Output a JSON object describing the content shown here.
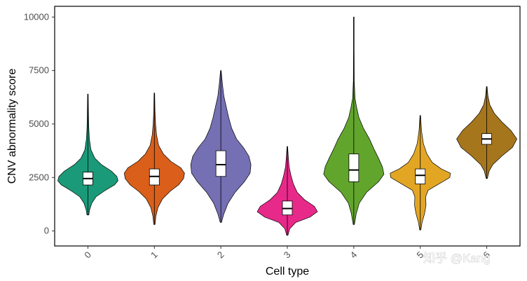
{
  "chart_data": {
    "type": "violin",
    "title": "",
    "xlabel": "Cell type",
    "ylabel": "CNV abnormality score",
    "ylim": [
      -700,
      10500
    ],
    "yticks": [
      0,
      2500,
      5000,
      7500,
      10000
    ],
    "categories": [
      "0",
      "1",
      "2",
      "3",
      "4",
      "5",
      "6"
    ],
    "colors": [
      "#1a9a78",
      "#d95f1a",
      "#7570b3",
      "#e7298a",
      "#62a52d",
      "#e3a624",
      "#a6761d"
    ],
    "series": [
      {
        "name": "0",
        "min": 750,
        "q1": 2150,
        "median": 2450,
        "q3": 2750,
        "max": 6400,
        "density": [
          [
            750,
            0.03
          ],
          [
            1000,
            0.06
          ],
          [
            1300,
            0.13
          ],
          [
            1600,
            0.27
          ],
          [
            1900,
            0.58
          ],
          [
            2150,
            0.88
          ],
          [
            2350,
            1.0
          ],
          [
            2550,
            0.96
          ],
          [
            2800,
            0.78
          ],
          [
            3100,
            0.45
          ],
          [
            3400,
            0.23
          ],
          [
            3800,
            0.1
          ],
          [
            4300,
            0.05
          ],
          [
            4800,
            0.03
          ],
          [
            5400,
            0.02
          ],
          [
            6400,
            0.01
          ]
        ]
      },
      {
        "name": "1",
        "min": 300,
        "q1": 2150,
        "median": 2550,
        "q3": 2900,
        "max": 6450,
        "density": [
          [
            300,
            0.02
          ],
          [
            700,
            0.05
          ],
          [
            1100,
            0.12
          ],
          [
            1500,
            0.27
          ],
          [
            1850,
            0.52
          ],
          [
            2150,
            0.8
          ],
          [
            2450,
            0.97
          ],
          [
            2700,
            1.0
          ],
          [
            2950,
            0.88
          ],
          [
            3250,
            0.55
          ],
          [
            3600,
            0.3
          ],
          [
            4000,
            0.14
          ],
          [
            4500,
            0.07
          ],
          [
            5000,
            0.04
          ],
          [
            5600,
            0.02
          ],
          [
            6450,
            0.01
          ]
        ]
      },
      {
        "name": "2",
        "min": 400,
        "q1": 2550,
        "median": 3100,
        "q3": 3750,
        "max": 7500,
        "density": [
          [
            400,
            0.02
          ],
          [
            800,
            0.1
          ],
          [
            1300,
            0.24
          ],
          [
            1800,
            0.47
          ],
          [
            2300,
            0.78
          ],
          [
            2700,
            0.97
          ],
          [
            3100,
            1.0
          ],
          [
            3500,
            0.93
          ],
          [
            3900,
            0.75
          ],
          [
            4300,
            0.52
          ],
          [
            4800,
            0.36
          ],
          [
            5300,
            0.26
          ],
          [
            5800,
            0.18
          ],
          [
            6300,
            0.1
          ],
          [
            6900,
            0.05
          ],
          [
            7500,
            0.01
          ]
        ]
      },
      {
        "name": "3",
        "min": -200,
        "q1": 750,
        "median": 1050,
        "q3": 1400,
        "max": 3950,
        "density": [
          [
            -200,
            0.02
          ],
          [
            100,
            0.08
          ],
          [
            400,
            0.28
          ],
          [
            650,
            0.75
          ],
          [
            900,
            1.0
          ],
          [
            1150,
            0.9
          ],
          [
            1450,
            0.58
          ],
          [
            1800,
            0.33
          ],
          [
            2200,
            0.2
          ],
          [
            2600,
            0.12
          ],
          [
            3000,
            0.06
          ],
          [
            3500,
            0.03
          ],
          [
            3950,
            0.01
          ]
        ]
      },
      {
        "name": "4",
        "min": 300,
        "q1": 2300,
        "median": 2850,
        "q3": 3600,
        "max": 10000,
        "density": [
          [
            300,
            0.02
          ],
          [
            800,
            0.08
          ],
          [
            1300,
            0.18
          ],
          [
            1800,
            0.42
          ],
          [
            2300,
            0.82
          ],
          [
            2650,
            1.0
          ],
          [
            3000,
            0.95
          ],
          [
            3400,
            0.82
          ],
          [
            3800,
            0.68
          ],
          [
            4300,
            0.52
          ],
          [
            4800,
            0.32
          ],
          [
            5300,
            0.17
          ],
          [
            5800,
            0.09
          ],
          [
            6200,
            0.04
          ],
          [
            7000,
            0.015
          ],
          [
            8500,
            0.01
          ],
          [
            10000,
            0.01
          ]
        ]
      },
      {
        "name": "5",
        "min": 50,
        "q1": 2200,
        "median": 2600,
        "q3": 2900,
        "max": 5400,
        "density": [
          [
            50,
            0.02
          ],
          [
            400,
            0.06
          ],
          [
            800,
            0.14
          ],
          [
            1200,
            0.19
          ],
          [
            1600,
            0.18
          ],
          [
            1900,
            0.26
          ],
          [
            2200,
            0.62
          ],
          [
            2500,
            0.98
          ],
          [
            2700,
            1.0
          ],
          [
            2900,
            0.7
          ],
          [
            3200,
            0.4
          ],
          [
            3600,
            0.22
          ],
          [
            4100,
            0.1
          ],
          [
            4700,
            0.04
          ],
          [
            5400,
            0.01
          ]
        ]
      },
      {
        "name": "6",
        "min": 2450,
        "q1": 4050,
        "median": 4300,
        "q3": 4550,
        "max": 6750,
        "density": [
          [
            2450,
            0.02
          ],
          [
            2800,
            0.08
          ],
          [
            3100,
            0.2
          ],
          [
            3500,
            0.5
          ],
          [
            3900,
            0.85
          ],
          [
            4300,
            1.0
          ],
          [
            4700,
            0.8
          ],
          [
            5100,
            0.5
          ],
          [
            5500,
            0.25
          ],
          [
            5900,
            0.1
          ],
          [
            6300,
            0.04
          ],
          [
            6750,
            0.01
          ]
        ]
      }
    ]
  },
  "watermark": "知乎 @Kang"
}
